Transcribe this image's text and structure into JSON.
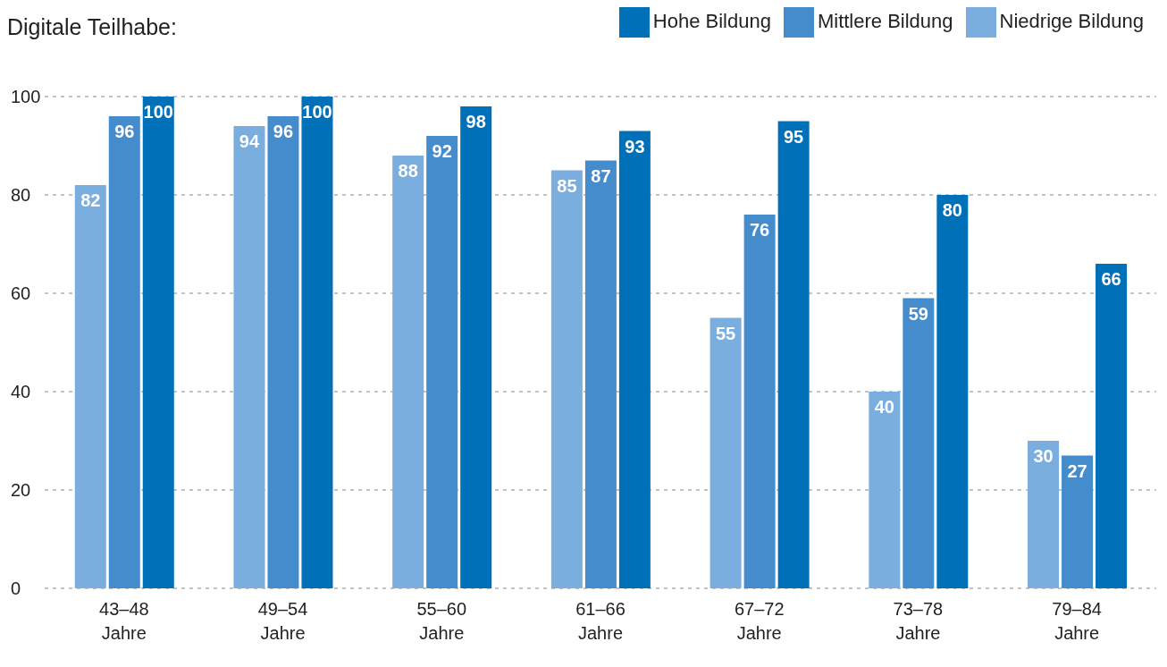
{
  "chart_data": {
    "type": "bar",
    "title": "Digitale Teilhabe:",
    "categories": [
      "43–48 Jahre",
      "49–54 Jahre",
      "55–60 Jahre",
      "61–66 Jahre",
      "67–72 Jahre",
      "73–78 Jahre",
      "79–84 Jahre"
    ],
    "series": [
      {
        "name": "Niedrige Bildung",
        "color": "#7aaedf",
        "values": [
          82,
          94,
          88,
          85,
          55,
          40,
          30
        ]
      },
      {
        "name": "Mittlere Bildung",
        "color": "#448ccb",
        "values": [
          96,
          96,
          92,
          87,
          76,
          59,
          27
        ]
      },
      {
        "name": "Hohe Bildung",
        "color": "#0070b8",
        "values": [
          100,
          100,
          98,
          93,
          95,
          80,
          66
        ]
      }
    ],
    "ylim": [
      0,
      100
    ],
    "yticks": [
      0,
      20,
      40,
      60,
      80,
      100
    ],
    "grid": "y",
    "legend": "top right",
    "data_labels": true
  }
}
